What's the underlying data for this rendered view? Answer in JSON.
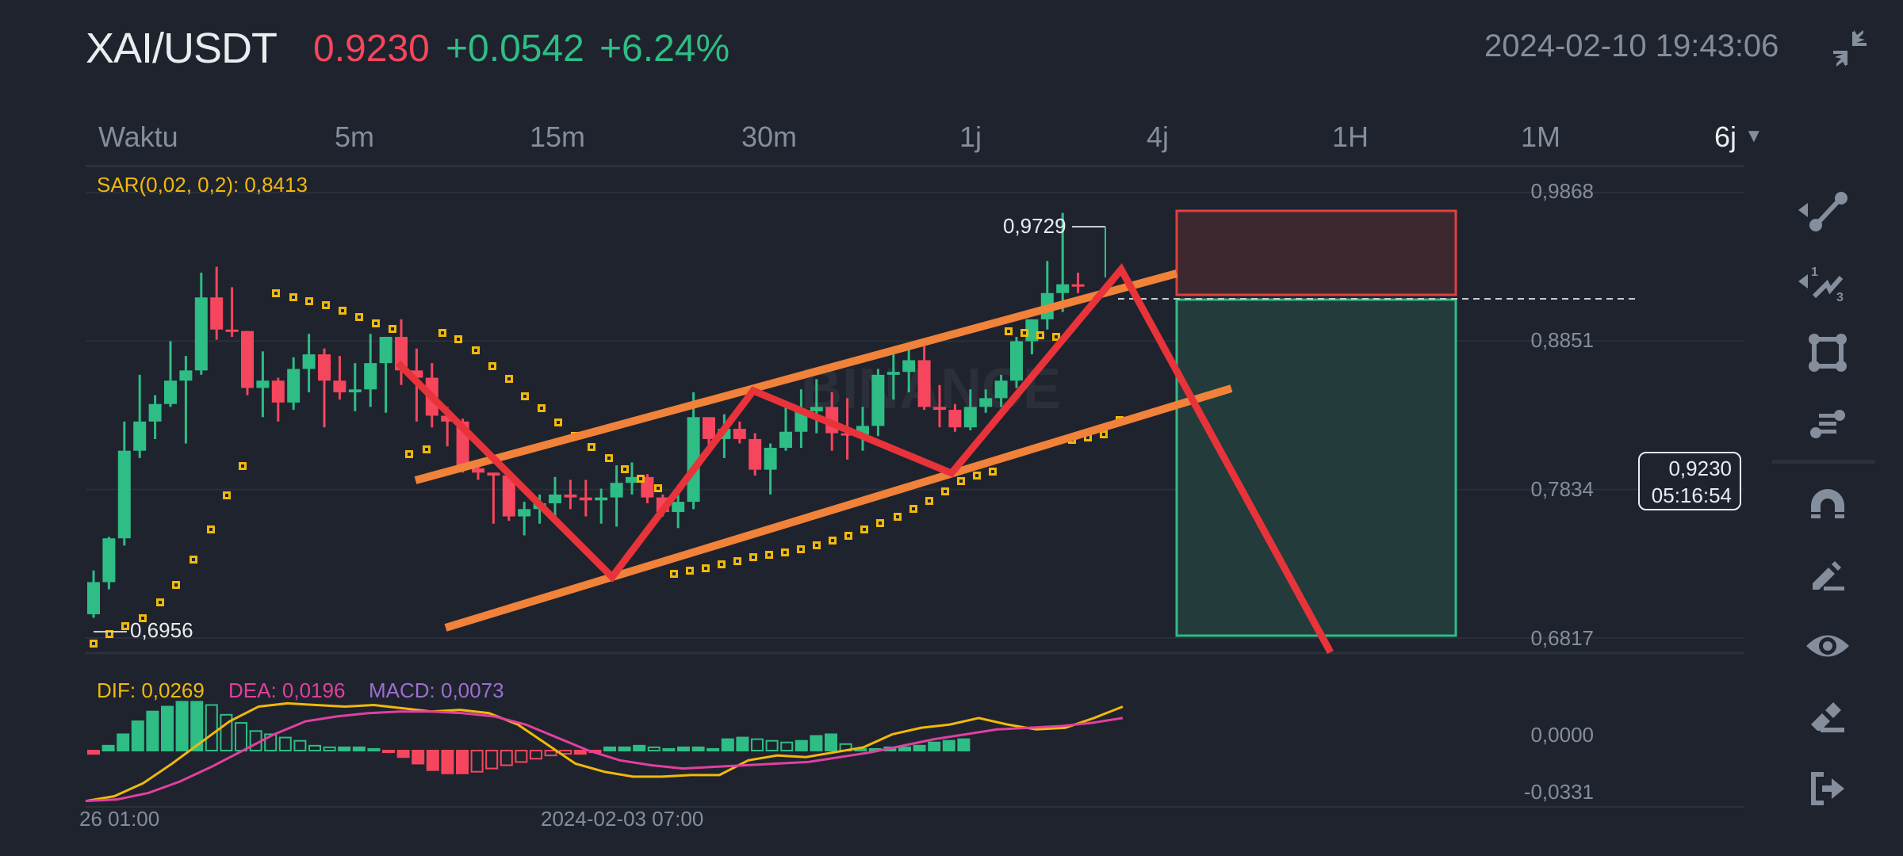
{
  "header": {
    "symbol": "XAI/USDT",
    "last_price": "0.9230",
    "change_abs": "+0.0542",
    "change_pct": "+6.24%",
    "datetime": "2024-02-10 19:43:06",
    "collapse_icon": "collapse-arrows-icon"
  },
  "tabs": [
    {
      "label": "Waktu",
      "active": false
    },
    {
      "label": "5m",
      "active": false
    },
    {
      "label": "15m",
      "active": false
    },
    {
      "label": "30m",
      "active": false
    },
    {
      "label": "1j",
      "active": false
    },
    {
      "label": "4j",
      "active": false
    },
    {
      "label": "1H",
      "active": false
    },
    {
      "label": "1M",
      "active": false
    },
    {
      "label": "6j",
      "active": true
    }
  ],
  "indicators": {
    "sar_label": "SAR(0,02, 0,2): 0,8413",
    "dif_label": "DIF: 0,0269",
    "dea_label": "DEA: 0,0196",
    "macd_label": "MACD: 0,0073"
  },
  "price_axis": {
    "labels": [
      "0,9868",
      "0,8851",
      "0,7834",
      "0,6817"
    ]
  },
  "macd_axis": {
    "labels": [
      "0,0000",
      "-0,0331"
    ]
  },
  "price_tag": {
    "price": "0,9230",
    "countdown": "05:16:54"
  },
  "annotations": {
    "high_label": "0,9729",
    "low_label": "0,6956",
    "watermark": "BINANCE"
  },
  "time_axis": {
    "labels": [
      "26 01:00",
      "2024-02-03 07:00"
    ]
  },
  "toolbar": [
    {
      "icon": "trend-line-icon",
      "has_submenu": true
    },
    {
      "icon": "fibonacci-wave-icon",
      "has_submenu": true
    },
    {
      "icon": "rectangle-shape-icon",
      "has_submenu": false
    },
    {
      "icon": "fib-retracement-icon",
      "has_submenu": false
    },
    {
      "icon": "magnet-icon",
      "has_submenu": false
    },
    {
      "icon": "pencil-draw-icon",
      "has_submenu": false
    },
    {
      "icon": "eye-visibility-icon",
      "has_submenu": false
    },
    {
      "icon": "eraser-icon",
      "has_submenu": false
    },
    {
      "icon": "exit-icon",
      "has_submenu": false
    }
  ],
  "colors": {
    "up": "#2ebd85",
    "down": "#f6465d",
    "sar": "#f0b90b",
    "channel": "#f0823a",
    "zigzag": "#e8333a",
    "dif": "#f0b90b",
    "dea": "#e040a0",
    "macd_text": "#9b6fd0",
    "background": "#1f232d"
  },
  "chart_data": {
    "type": "candlestick",
    "title": "XAI/USDT 6j",
    "ylim": [
      0.66,
      1.0
    ],
    "y_ticks": [
      0.9868,
      0.8851,
      0.7834,
      0.6817
    ],
    "x_tick_labels": [
      "26 01:00",
      "2024-02-03 07:00"
    ],
    "current_price": 0.923,
    "period_high": 0.9729,
    "period_low": 0.6956,
    "candles": [
      [
        0.698,
        0.72,
        0.6956,
        0.728
      ],
      [
        0.72,
        0.75,
        0.715,
        0.751
      ],
      [
        0.75,
        0.81,
        0.745,
        0.83
      ],
      [
        0.81,
        0.83,
        0.805,
        0.862
      ],
      [
        0.83,
        0.842,
        0.818,
        0.848
      ],
      [
        0.842,
        0.858,
        0.84,
        0.885
      ],
      [
        0.858,
        0.865,
        0.815,
        0.875
      ],
      [
        0.865,
        0.915,
        0.862,
        0.932
      ],
      [
        0.915,
        0.893,
        0.886,
        0.936
      ],
      [
        0.893,
        0.892,
        0.888,
        0.922
      ],
      [
        0.892,
        0.853,
        0.848,
        0.892
      ],
      [
        0.853,
        0.858,
        0.833,
        0.878
      ],
      [
        0.858,
        0.843,
        0.83,
        0.86
      ],
      [
        0.843,
        0.866,
        0.838,
        0.874
      ],
      [
        0.866,
        0.876,
        0.85,
        0.89
      ],
      [
        0.876,
        0.858,
        0.826,
        0.88
      ],
      [
        0.858,
        0.85,
        0.845,
        0.875
      ],
      [
        0.85,
        0.852,
        0.837,
        0.87
      ],
      [
        0.852,
        0.87,
        0.84,
        0.89
      ],
      [
        0.87,
        0.888,
        0.836,
        0.888
      ],
      [
        0.888,
        0.865,
        0.855,
        0.9
      ],
      [
        0.865,
        0.86,
        0.83,
        0.88
      ],
      [
        0.86,
        0.834,
        0.826,
        0.87
      ],
      [
        0.834,
        0.83,
        0.813,
        0.84
      ],
      [
        0.83,
        0.798,
        0.795,
        0.832
      ],
      [
        0.798,
        0.795,
        0.79,
        0.8
      ],
      [
        0.795,
        0.793,
        0.76,
        0.795
      ],
      [
        0.793,
        0.765,
        0.762,
        0.793
      ],
      [
        0.765,
        0.77,
        0.752,
        0.775
      ],
      [
        0.77,
        0.774,
        0.76,
        0.78
      ],
      [
        0.774,
        0.78,
        0.76,
        0.792
      ],
      [
        0.78,
        0.778,
        0.77,
        0.79
      ],
      [
        0.778,
        0.776,
        0.765,
        0.79
      ],
      [
        0.776,
        0.778,
        0.76,
        0.784
      ],
      [
        0.778,
        0.788,
        0.758,
        0.8
      ],
      [
        0.788,
        0.792,
        0.78,
        0.802
      ],
      [
        0.792,
        0.778,
        0.774,
        0.794
      ],
      [
        0.778,
        0.768,
        0.765,
        0.78
      ],
      [
        0.768,
        0.775,
        0.757,
        0.785
      ],
      [
        0.775,
        0.833,
        0.77,
        0.85
      ],
      [
        0.833,
        0.818,
        0.812,
        0.833
      ],
      [
        0.818,
        0.825,
        0.805,
        0.835
      ],
      [
        0.825,
        0.818,
        0.815,
        0.83
      ],
      [
        0.818,
        0.797,
        0.793,
        0.822
      ],
      [
        0.797,
        0.812,
        0.78,
        0.815
      ],
      [
        0.812,
        0.823,
        0.81,
        0.84
      ],
      [
        0.823,
        0.837,
        0.812,
        0.852
      ],
      [
        0.837,
        0.84,
        0.822,
        0.859
      ],
      [
        0.84,
        0.822,
        0.81,
        0.85
      ],
      [
        0.822,
        0.821,
        0.804,
        0.846
      ],
      [
        0.821,
        0.827,
        0.81,
        0.84
      ],
      [
        0.827,
        0.862,
        0.82,
        0.866
      ],
      [
        0.862,
        0.864,
        0.845,
        0.877
      ],
      [
        0.864,
        0.872,
        0.85,
        0.88
      ],
      [
        0.872,
        0.84,
        0.838,
        0.886
      ],
      [
        0.84,
        0.838,
        0.826,
        0.855
      ],
      [
        0.838,
        0.826,
        0.823,
        0.842
      ],
      [
        0.826,
        0.84,
        0.824,
        0.852
      ],
      [
        0.84,
        0.846,
        0.836,
        0.852
      ],
      [
        0.846,
        0.858,
        0.84,
        0.862
      ],
      [
        0.858,
        0.885,
        0.853,
        0.888
      ],
      [
        0.885,
        0.9,
        0.876,
        0.9
      ],
      [
        0.9,
        0.918,
        0.893,
        0.94
      ],
      [
        0.918,
        0.924,
        0.905,
        0.9729
      ],
      [
        0.924,
        0.923,
        0.918,
        0.932
      ]
    ],
    "overlays": {
      "sar": "Parabolic SAR(0.02, 0.2) dotted series",
      "ascending_channel": {
        "upper": [
          [
            0.8,
            0.93
          ],
          [
            0.93,
            0.96
          ]
        ],
        "lower": [
          [
            0.71,
            0.82
          ],
          [
            0.82,
            0.88
          ]
        ]
      },
      "zigzag_points": [
        0.885,
        0.772,
        0.863,
        0.812,
        0.955,
        0.67
      ],
      "short_position": {
        "entry": 0.923,
        "stop_loss": 0.9729,
        "take_profit": 0.6817
      }
    },
    "macd": {
      "dif": 0.0269,
      "dea": 0.0196,
      "macd": 0.0073,
      "ylim": [
        -0.0331,
        0.035
      ],
      "histogram": [
        -0.002,
        0.003,
        0.01,
        0.018,
        0.024,
        0.027,
        0.03,
        0.03,
        0.028,
        0.022,
        0.017,
        0.012,
        0.01,
        0.008,
        0.006,
        0.003,
        0.002,
        0.002,
        0.002,
        0.001,
        -0.001,
        -0.004,
        -0.008,
        -0.012,
        -0.014,
        -0.014,
        -0.013,
        -0.011,
        -0.009,
        -0.007,
        -0.005,
        -0.003,
        -0.002,
        -0.002,
        -0.001,
        0.002,
        0.002,
        0.003,
        0.002,
        0.001,
        0.002,
        0.002,
        0.001,
        0.007,
        0.008,
        0.007,
        0.006,
        0.005,
        0.006,
        0.009,
        0.01,
        0.004,
        0.001,
        0.001,
        0.002,
        0.002,
        0.003,
        0.005,
        0.006,
        0.007
      ],
      "dif_series": [
        -0.031,
        -0.028,
        -0.02,
        -0.008,
        0.005,
        0.018,
        0.027,
        0.029,
        0.028,
        0.027,
        0.028,
        0.026,
        0.024,
        0.025,
        0.023,
        0.016,
        0.004,
        -0.008,
        -0.013,
        -0.016,
        -0.016,
        -0.015,
        -0.015,
        -0.006,
        -0.003,
        -0.004,
        -0.001,
        0.002,
        0.01,
        0.014,
        0.016,
        0.02,
        0.016,
        0.013,
        0.014,
        0.02,
        0.027
      ],
      "dea_series": [
        -0.031,
        -0.03,
        -0.026,
        -0.019,
        -0.01,
        0.0,
        0.01,
        0.018,
        0.021,
        0.023,
        0.024,
        0.024,
        0.023,
        0.021,
        0.016,
        0.008,
        0.0,
        -0.006,
        -0.009,
        -0.011,
        -0.01,
        -0.009,
        -0.008,
        -0.007,
        -0.004,
        -0.001,
        0.003,
        0.007,
        0.01,
        0.013,
        0.014,
        0.015,
        0.017,
        0.02
      ]
    }
  }
}
